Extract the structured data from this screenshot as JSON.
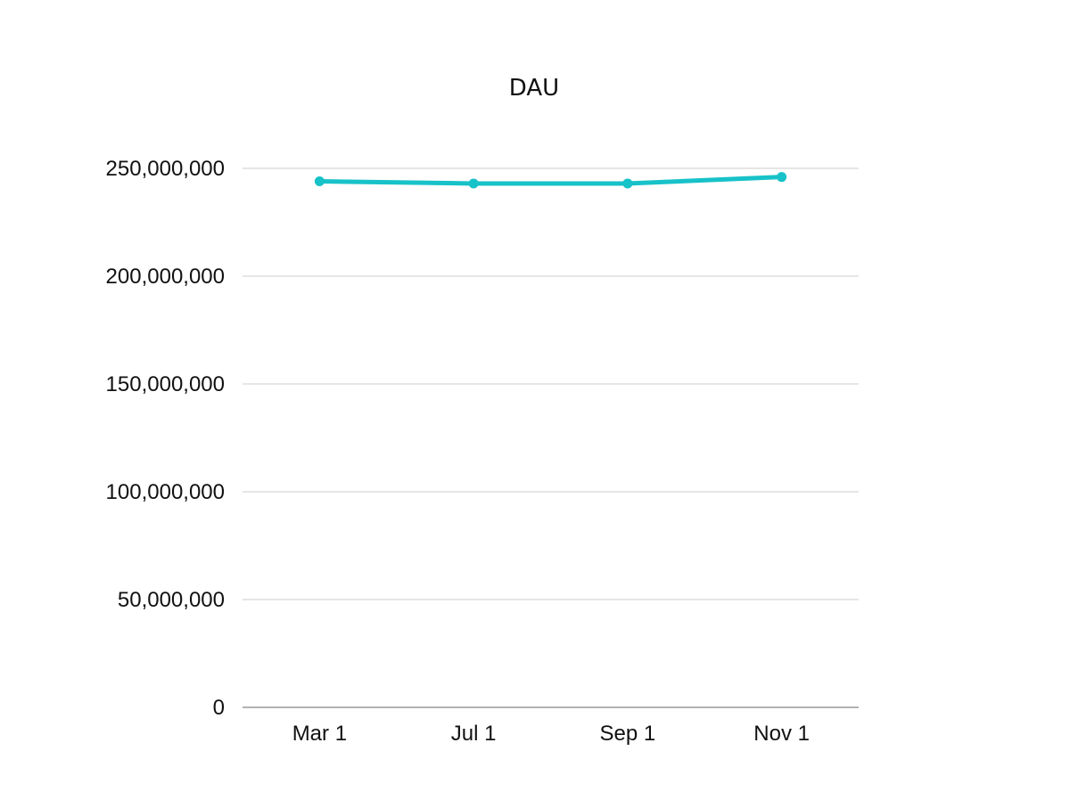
{
  "chart_data": {
    "type": "line",
    "title": "DAU",
    "xlabel": "",
    "ylabel": "",
    "categories": [
      "Mar 1",
      "Jul 1",
      "Sep 1",
      "Nov 1"
    ],
    "series": [
      {
        "values": [
          244000000,
          243000000,
          243000000,
          246000000
        ]
      }
    ],
    "ylim": [
      0,
      250000000
    ],
    "yticks": [
      0,
      50000000,
      100000000,
      150000000,
      200000000,
      250000000
    ],
    "ytick_labels": [
      "0",
      "50,000,000",
      "100,000,000",
      "150,000,000",
      "200,000,000",
      "250,000,000"
    ],
    "grid": true,
    "legend": "none",
    "colors": {
      "line": "#17c2c8",
      "grid": "#cccccc",
      "axis": "#999999",
      "text": "#111111"
    }
  }
}
